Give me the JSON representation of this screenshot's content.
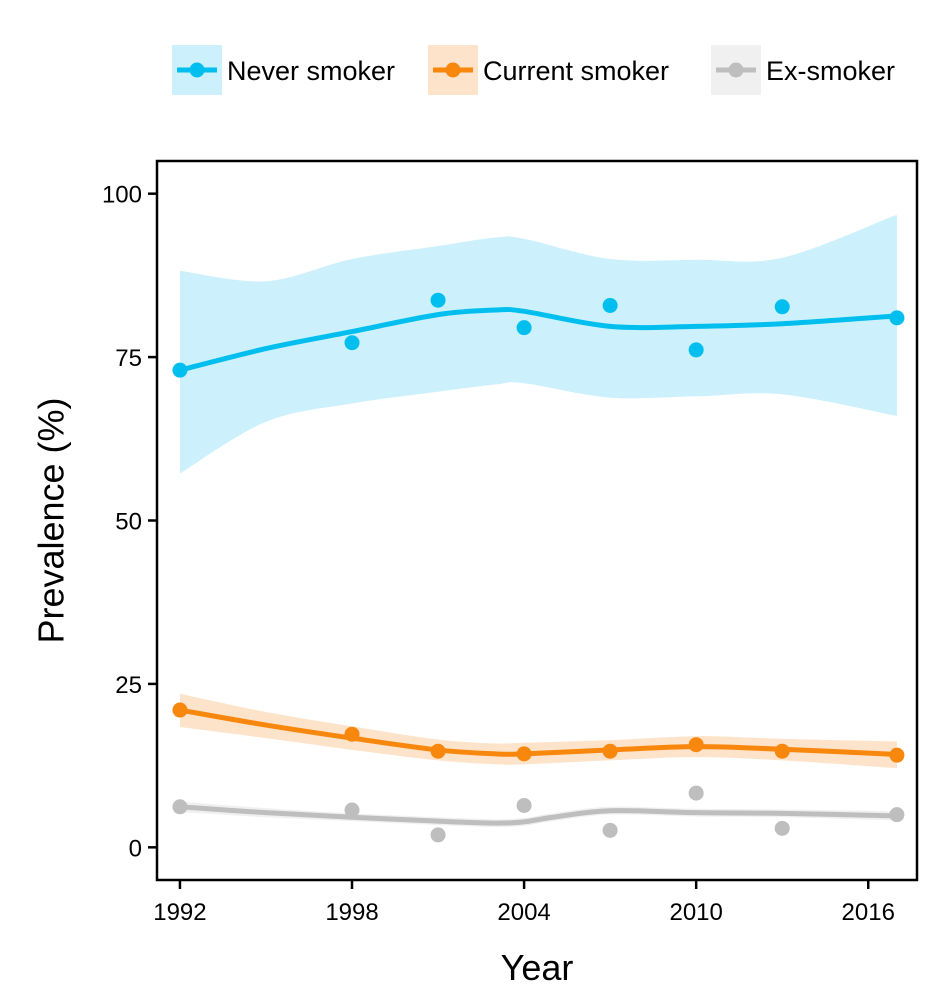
{
  "chart_data": {
    "type": "scatter",
    "title": "",
    "xlabel": "Year",
    "ylabel": "Prevalence (%)",
    "xlim": [
      1991.2,
      2017.7
    ],
    "ylim": [
      -5,
      105
    ],
    "xticks": [
      1992,
      1998,
      2004,
      2010,
      2016
    ],
    "yticks": [
      0,
      25,
      50,
      75,
      100
    ],
    "grid": false,
    "legend_position": "top-right",
    "x": [
      1992,
      1998,
      2001,
      2004,
      2007,
      2010,
      2013,
      2017
    ],
    "series": [
      {
        "name": "Never smoker",
        "color": "#00BFEF",
        "band_color": "#CCF1FC",
        "points": [
          73.0,
          77.2,
          83.7,
          79.5,
          82.9,
          76.1,
          82.7,
          81.0
        ],
        "smooth_x": [
          1992,
          1995,
          1998,
          2001,
          2003,
          2004,
          2007,
          2010,
          2013,
          2017
        ],
        "smooth": [
          73.0,
          76.3,
          78.9,
          81.5,
          82.2,
          82.0,
          79.7,
          79.7,
          80.1,
          81.3
        ],
        "band_upper": [
          88.2,
          86.6,
          90.0,
          92.0,
          93.3,
          93.1,
          90.0,
          89.9,
          90.2,
          96.8
        ],
        "band_lower": [
          57.2,
          65.1,
          67.9,
          69.7,
          70.8,
          71.0,
          68.8,
          69.0,
          69.3,
          66.0
        ]
      },
      {
        "name": "Current smoker",
        "color": "#F8870E",
        "band_color": "#FDE3C9",
        "points": [
          21.0,
          17.3,
          14.7,
          14.3,
          14.7,
          15.7,
          14.7,
          14.1
        ],
        "smooth_x": [
          1992,
          1995,
          1998,
          2001,
          2003,
          2004,
          2007,
          2010,
          2013,
          2017
        ],
        "smooth": [
          21.0,
          18.7,
          16.7,
          14.9,
          14.3,
          14.3,
          14.9,
          15.4,
          15.0,
          14.2
        ],
        "band_upper": [
          23.5,
          20.7,
          18.5,
          16.5,
          15.9,
          16.0,
          16.4,
          17.0,
          16.6,
          16.2
        ],
        "band_lower": [
          18.4,
          16.7,
          14.9,
          13.3,
          12.7,
          12.7,
          13.3,
          13.8,
          13.3,
          12.1
        ]
      },
      {
        "name": "Ex-smoker",
        "color": "#BEBEBE",
        "band_color": "#F0F0F0",
        "points": [
          6.2,
          5.7,
          1.9,
          6.4,
          2.6,
          8.3,
          2.9,
          5.0
        ],
        "smooth_x": [
          1992,
          1995,
          1998,
          2001,
          2003,
          2004,
          2005,
          2007,
          2010,
          2013,
          2017
        ],
        "smooth": [
          6.2,
          5.3,
          4.6,
          4.0,
          3.7,
          3.9,
          4.6,
          5.6,
          5.3,
          5.2,
          4.8
        ],
        "band_upper": [
          7.0,
          6.0,
          5.2,
          4.6,
          4.3,
          4.5,
          5.2,
          6.2,
          5.9,
          5.8,
          5.5
        ],
        "band_lower": [
          5.4,
          4.6,
          4.0,
          3.4,
          3.1,
          3.3,
          4.0,
          5.0,
          4.7,
          4.6,
          4.1
        ]
      }
    ]
  }
}
